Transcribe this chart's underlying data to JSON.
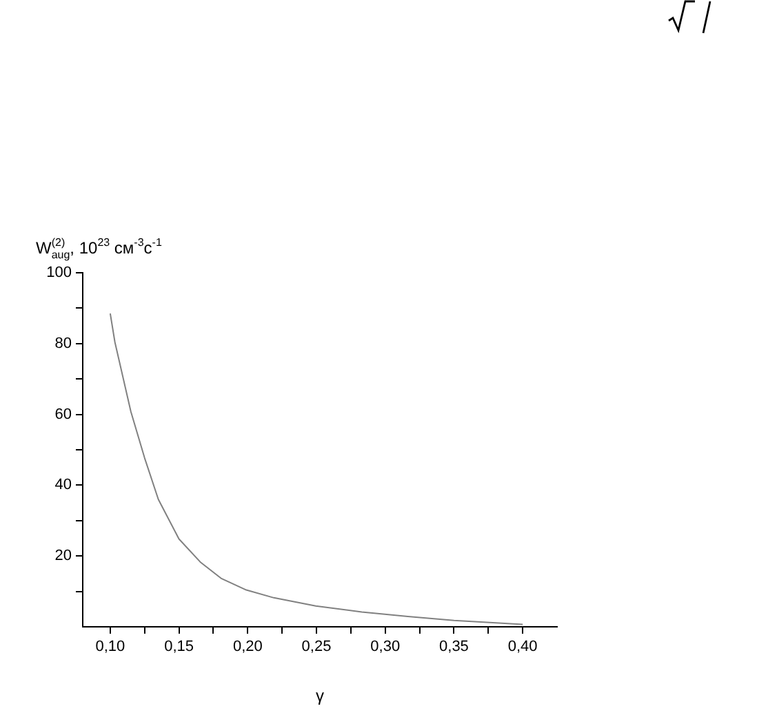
{
  "chart_data": {
    "type": "line",
    "ylabel": "W$_{aug}$$^{(2)}$, 10$^{23}$ см$^{-3}$с$^{-1}$",
    "xlabel": "γ",
    "series": [
      {
        "color": "#808080",
        "x": [
          0.1,
          0.1034,
          0.115,
          0.125,
          0.135,
          0.15,
          0.1655,
          0.1806,
          0.199,
          0.219,
          0.2495,
          0.283,
          0.3165,
          0.35,
          0.4
        ],
        "values": [
          88.5,
          80.4,
          60.8,
          47.7,
          36,
          24.8,
          18.3,
          13.7,
          10.4,
          8.2,
          5.9,
          4.2,
          2.9,
          1.8,
          0.7
        ]
      }
    ],
    "xlim": [
      0.08,
      0.425
    ],
    "ylim": [
      0,
      100
    ],
    "xticks": [
      {
        "value": 0.1,
        "label": "0,10"
      },
      {
        "value": 0.125,
        "label": null
      },
      {
        "value": 0.15,
        "label": "0,15"
      },
      {
        "value": 0.175,
        "label": null
      },
      {
        "value": 0.2,
        "label": "0,20"
      },
      {
        "value": 0.225,
        "label": null
      },
      {
        "value": 0.25,
        "label": "0,25"
      },
      {
        "value": 0.275,
        "label": null
      },
      {
        "value": 0.3,
        "label": "0,30"
      },
      {
        "value": 0.325,
        "label": null
      },
      {
        "value": 0.35,
        "label": "0,35"
      },
      {
        "value": 0.375,
        "label": null
      },
      {
        "value": 0.4,
        "label": "0,40"
      }
    ],
    "yticks": [
      {
        "value": 10,
        "label": null
      },
      20,
      {
        "value": 30,
        "label": null
      },
      40,
      {
        "value": 50,
        "label": null
      },
      60,
      {
        "value": 70,
        "label": null
      },
      80,
      {
        "value": 90,
        "label": null
      },
      100
    ],
    "grid": false,
    "legend": false,
    "marker": "none",
    "line_style": "solid"
  }
}
